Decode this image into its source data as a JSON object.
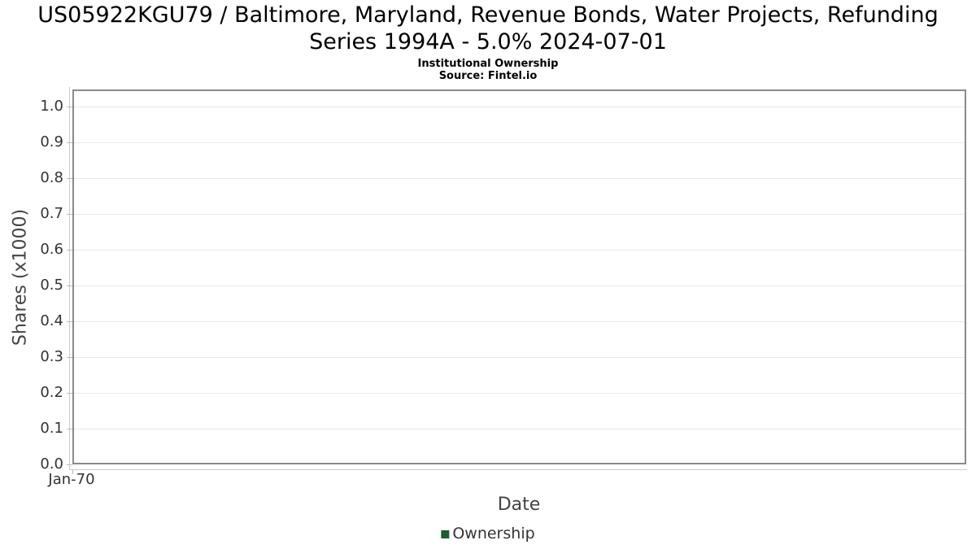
{
  "header": {
    "title_line1": "US05922KGU79 / Baltimore, Maryland, Revenue Bonds, Water Projects, Refunding",
    "title_line2": "Series 1994A - 5.0% 2024-07-01",
    "subtitle": "Institutional Ownership",
    "source": "Source: Fintel.io"
  },
  "chart_data": {
    "type": "line",
    "title": "US05922KGU79 / Baltimore, Maryland, Revenue Bonds, Water Projects, Refunding Series 1994A - 5.0% 2024-07-01",
    "subtitle": "Institutional Ownership",
    "source": "Source: Fintel.io",
    "xlabel": "Date",
    "ylabel": "Shares (x1000)",
    "x_tick_labels": [
      "Jan-70"
    ],
    "y_tick_labels": [
      "0.0",
      "0.1",
      "0.2",
      "0.3",
      "0.4",
      "0.5",
      "0.6",
      "0.7",
      "0.8",
      "0.9",
      "1.0"
    ],
    "ylim": [
      0,
      1.05
    ],
    "grid": true,
    "legend_position": "bottom",
    "series": [
      {
        "name": "Ownership",
        "color": "#1f5c31",
        "values": []
      }
    ]
  },
  "colors": {
    "grid": "#e8e8e8",
    "plot_border": "#8a8a8a",
    "axis_line": "#cccccc",
    "tick_mark": "#bbbbbb",
    "title_text": "#000000",
    "axis_label_text": "#444444",
    "tick_label_text": "#333333",
    "legend_text": "#333333",
    "legend_marker": "#1f5c31",
    "background": "#ffffff"
  }
}
